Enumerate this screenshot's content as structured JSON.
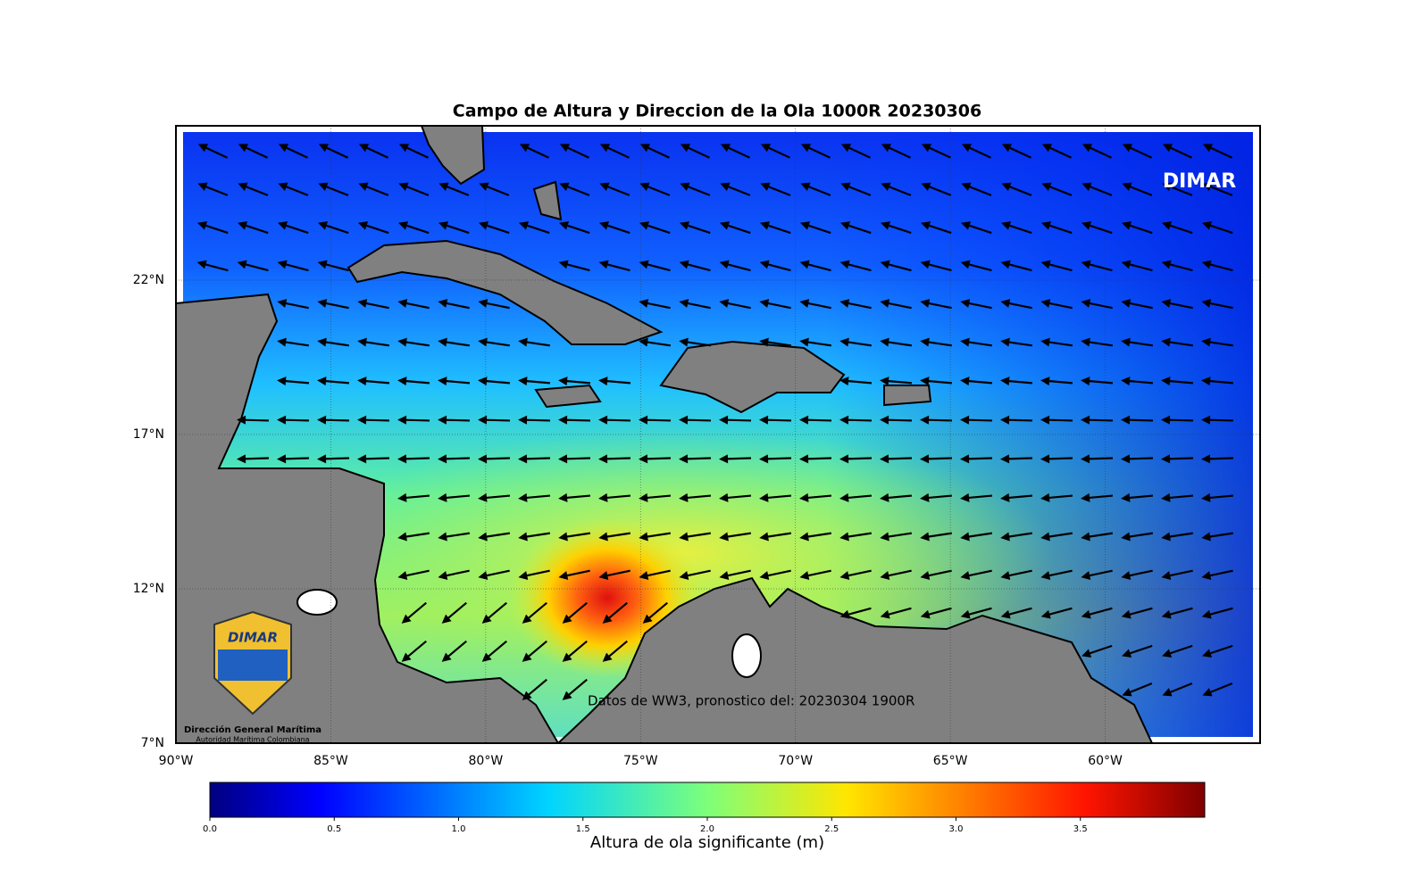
{
  "map": {
    "title": "Campo de Altura y Direccion de la Ola 1000R 20230306",
    "xlim": [
      -90,
      -55
    ],
    "ylim": [
      7,
      27
    ],
    "xticks": [
      {
        "value": -90,
        "label": "90°W"
      },
      {
        "value": -85,
        "label": "85°W"
      },
      {
        "value": -80,
        "label": "80°W"
      },
      {
        "value": -75,
        "label": "75°W"
      },
      {
        "value": -70,
        "label": "70°W"
      },
      {
        "value": -65,
        "label": "65°W"
      },
      {
        "value": -60,
        "label": "60°W"
      }
    ],
    "yticks": [
      {
        "value": 7,
        "label": "7°N"
      },
      {
        "value": 12,
        "label": "12°N"
      },
      {
        "value": 17,
        "label": "17°N"
      },
      {
        "value": 22,
        "label": "22°N"
      }
    ],
    "grid": true,
    "watermark": "DIMAR",
    "annotation": "Datos de WW3, pronostico del: 20230304 1900R",
    "logo": {
      "mark": "DIMAR",
      "name": "Dirección General Marítima",
      "subtitle": "Autoridad Marítima Colombiana"
    },
    "colorbar": {
      "label": "Altura de ola significante (m)",
      "clim": [
        0,
        4
      ],
      "ticks": [
        {
          "value": 0,
          "label": "0.0"
        },
        {
          "value": 0.5,
          "label": "0.5"
        },
        {
          "value": 1,
          "label": "1.0"
        },
        {
          "value": 1.5,
          "label": "1.5"
        },
        {
          "value": 2,
          "label": "2.0"
        },
        {
          "value": 2.5,
          "label": "2.5"
        },
        {
          "value": 3,
          "label": "3.0"
        },
        {
          "value": 3.5,
          "label": "3.5"
        }
      ]
    }
  }
}
